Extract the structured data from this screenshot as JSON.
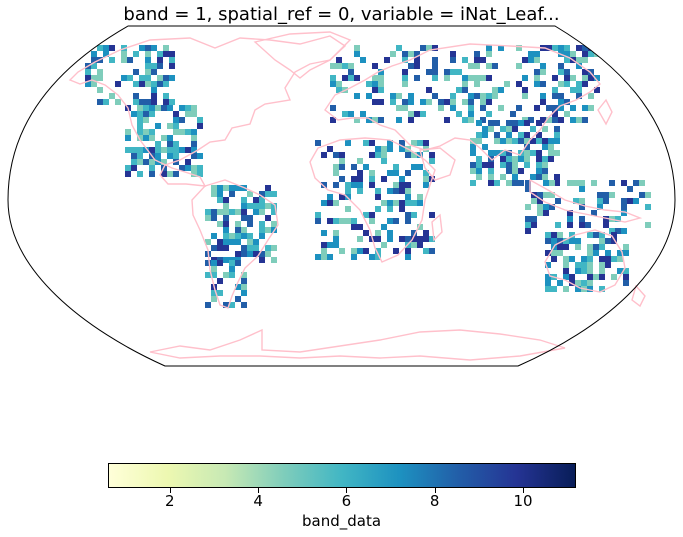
{
  "title": "band = 1, spatial_ref = 0, variable = iNat_Leaf...",
  "colorbar": {
    "label": "band_data",
    "min": 0.6,
    "max": 11.2,
    "ticks": [
      "2",
      "4",
      "6",
      "8",
      "10"
    ],
    "tick_values": [
      2,
      4,
      6,
      8,
      10
    ],
    "colormap": "YlGnBu",
    "colormap_stops": [
      "#ffffd9",
      "#edf8b1",
      "#c7e9b4",
      "#7fcdbb",
      "#41b6c4",
      "#1d91c0",
      "#225ea8",
      "#253494",
      "#081d58"
    ]
  },
  "map": {
    "projection": "Robinson",
    "coastline_color": "#ffc0cb",
    "outline_color": "#000000",
    "background": "#ffffff"
  }
}
